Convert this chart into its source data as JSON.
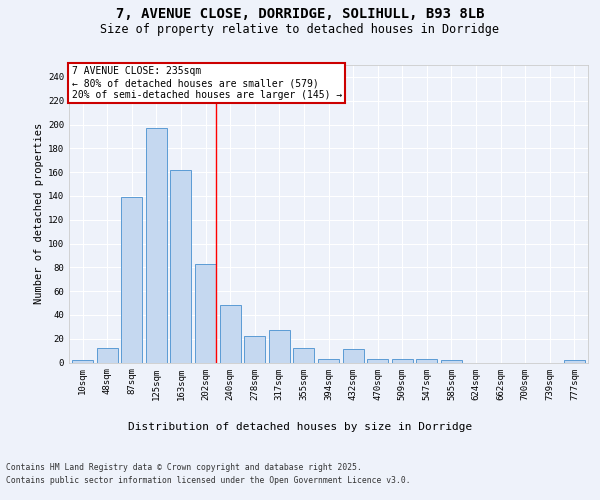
{
  "title": "7, AVENUE CLOSE, DORRIDGE, SOLIHULL, B93 8LB",
  "subtitle": "Size of property relative to detached houses in Dorridge",
  "xlabel": "Distribution of detached houses by size in Dorridge",
  "ylabel": "Number of detached properties",
  "categories": [
    "10sqm",
    "48sqm",
    "87sqm",
    "125sqm",
    "163sqm",
    "202sqm",
    "240sqm",
    "278sqm",
    "317sqm",
    "355sqm",
    "394sqm",
    "432sqm",
    "470sqm",
    "509sqm",
    "547sqm",
    "585sqm",
    "624sqm",
    "662sqm",
    "700sqm",
    "739sqm",
    "777sqm"
  ],
  "values": [
    2,
    12,
    139,
    197,
    162,
    83,
    48,
    22,
    27,
    12,
    3,
    11,
    3,
    3,
    3,
    2,
    0,
    0,
    0,
    0,
    2
  ],
  "bar_color": "#c5d8f0",
  "bar_edge_color": "#5b9bd5",
  "annotation_text_line1": "7 AVENUE CLOSE: 235sqm",
  "annotation_text_line2": "← 80% of detached houses are smaller (579)",
  "annotation_text_line3": "20% of semi-detached houses are larger (145) →",
  "annotation_box_facecolor": "#ffffff",
  "annotation_box_edgecolor": "#cc0000",
  "red_line_x": 5.425,
  "ylim": [
    0,
    250
  ],
  "yticks": [
    0,
    20,
    40,
    60,
    80,
    100,
    120,
    140,
    160,
    180,
    200,
    220,
    240
  ],
  "background_color": "#eef2fa",
  "plot_bg_color": "#eef2fa",
  "grid_color": "#ffffff",
  "title_fontsize": 10,
  "subtitle_fontsize": 8.5,
  "ylabel_fontsize": 7.5,
  "xlabel_fontsize": 8,
  "tick_fontsize": 6.5,
  "footer_line1": "Contains HM Land Registry data © Crown copyright and database right 2025.",
  "footer_line2": "Contains public sector information licensed under the Open Government Licence v3.0."
}
